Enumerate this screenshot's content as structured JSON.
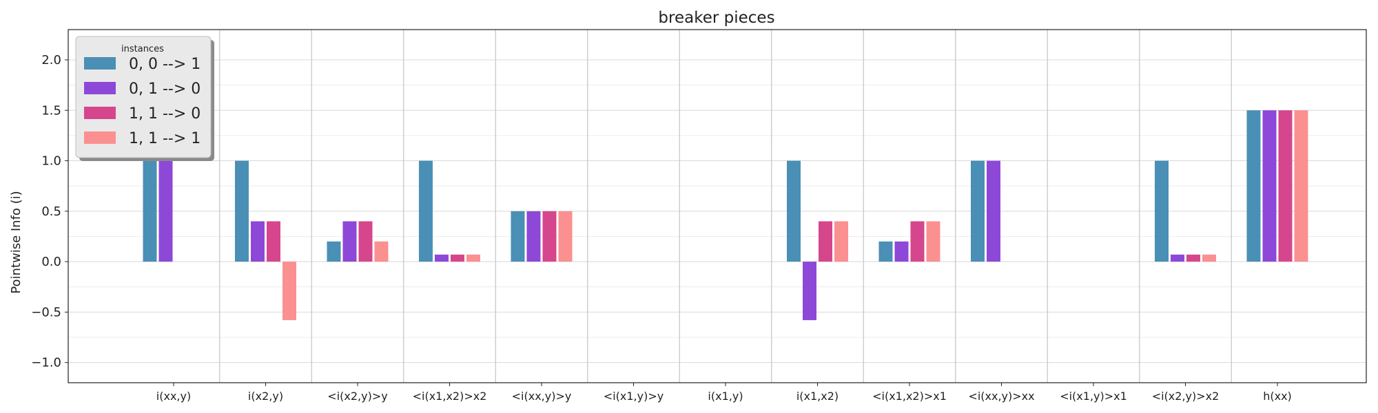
{
  "chart_data": {
    "type": "bar",
    "title": "breaker pieces",
    "xlabel": "",
    "ylabel": "Pointwise Info (i)",
    "ylim": [
      -1.2,
      2.3
    ],
    "yticks": [
      -1.0,
      -0.5,
      0.0,
      0.5,
      1.0,
      1.5,
      2.0
    ],
    "ytick_labels": [
      "−1.0",
      "−0.5",
      "0.0",
      "0.5",
      "1.0",
      "1.5",
      "2.0"
    ],
    "grid": true,
    "legend": {
      "title": "instances",
      "placement": "top-left"
    },
    "categories": [
      "i(xx,y)",
      "i(x2,y)",
      "<i(x2,y)>y",
      "<i(x1,x2)>x2",
      "<i(xx,y)>y",
      "<i(x1,y)>y",
      "i(x1,y)",
      "i(x1,x2)",
      "<i(x1,x2)>x1",
      "<i(xx,y)>xx",
      "<i(x1,y)>x1",
      "<i(x2,y)>x2",
      "h(xx)"
    ],
    "series": [
      {
        "name": "0, 0 --> 1",
        "color": "#4a8fb5",
        "values": [
          1.0,
          1.0,
          0.2,
          1.0,
          0.5,
          0.0,
          0.0,
          1.0,
          0.2,
          1.0,
          0.0,
          1.0,
          1.5
        ]
      },
      {
        "name": "0, 1 --> 0",
        "color": "#8e48d8",
        "values": [
          1.0,
          0.4,
          0.4,
          0.07,
          0.5,
          0.0,
          0.0,
          -0.58,
          0.2,
          1.0,
          0.0,
          0.07,
          1.5
        ]
      },
      {
        "name": "1, 1 --> 0",
        "color": "#d6468c",
        "values": [
          0.0,
          0.4,
          0.4,
          0.07,
          0.5,
          0.0,
          0.0,
          0.4,
          0.4,
          0.0,
          0.0,
          0.07,
          1.5
        ]
      },
      {
        "name": "1, 1 --> 1",
        "color": "#fb9090",
        "values": [
          0.0,
          -0.58,
          0.2,
          0.07,
          0.5,
          0.0,
          0.0,
          0.4,
          0.4,
          0.0,
          0.0,
          0.07,
          1.5
        ]
      }
    ]
  }
}
